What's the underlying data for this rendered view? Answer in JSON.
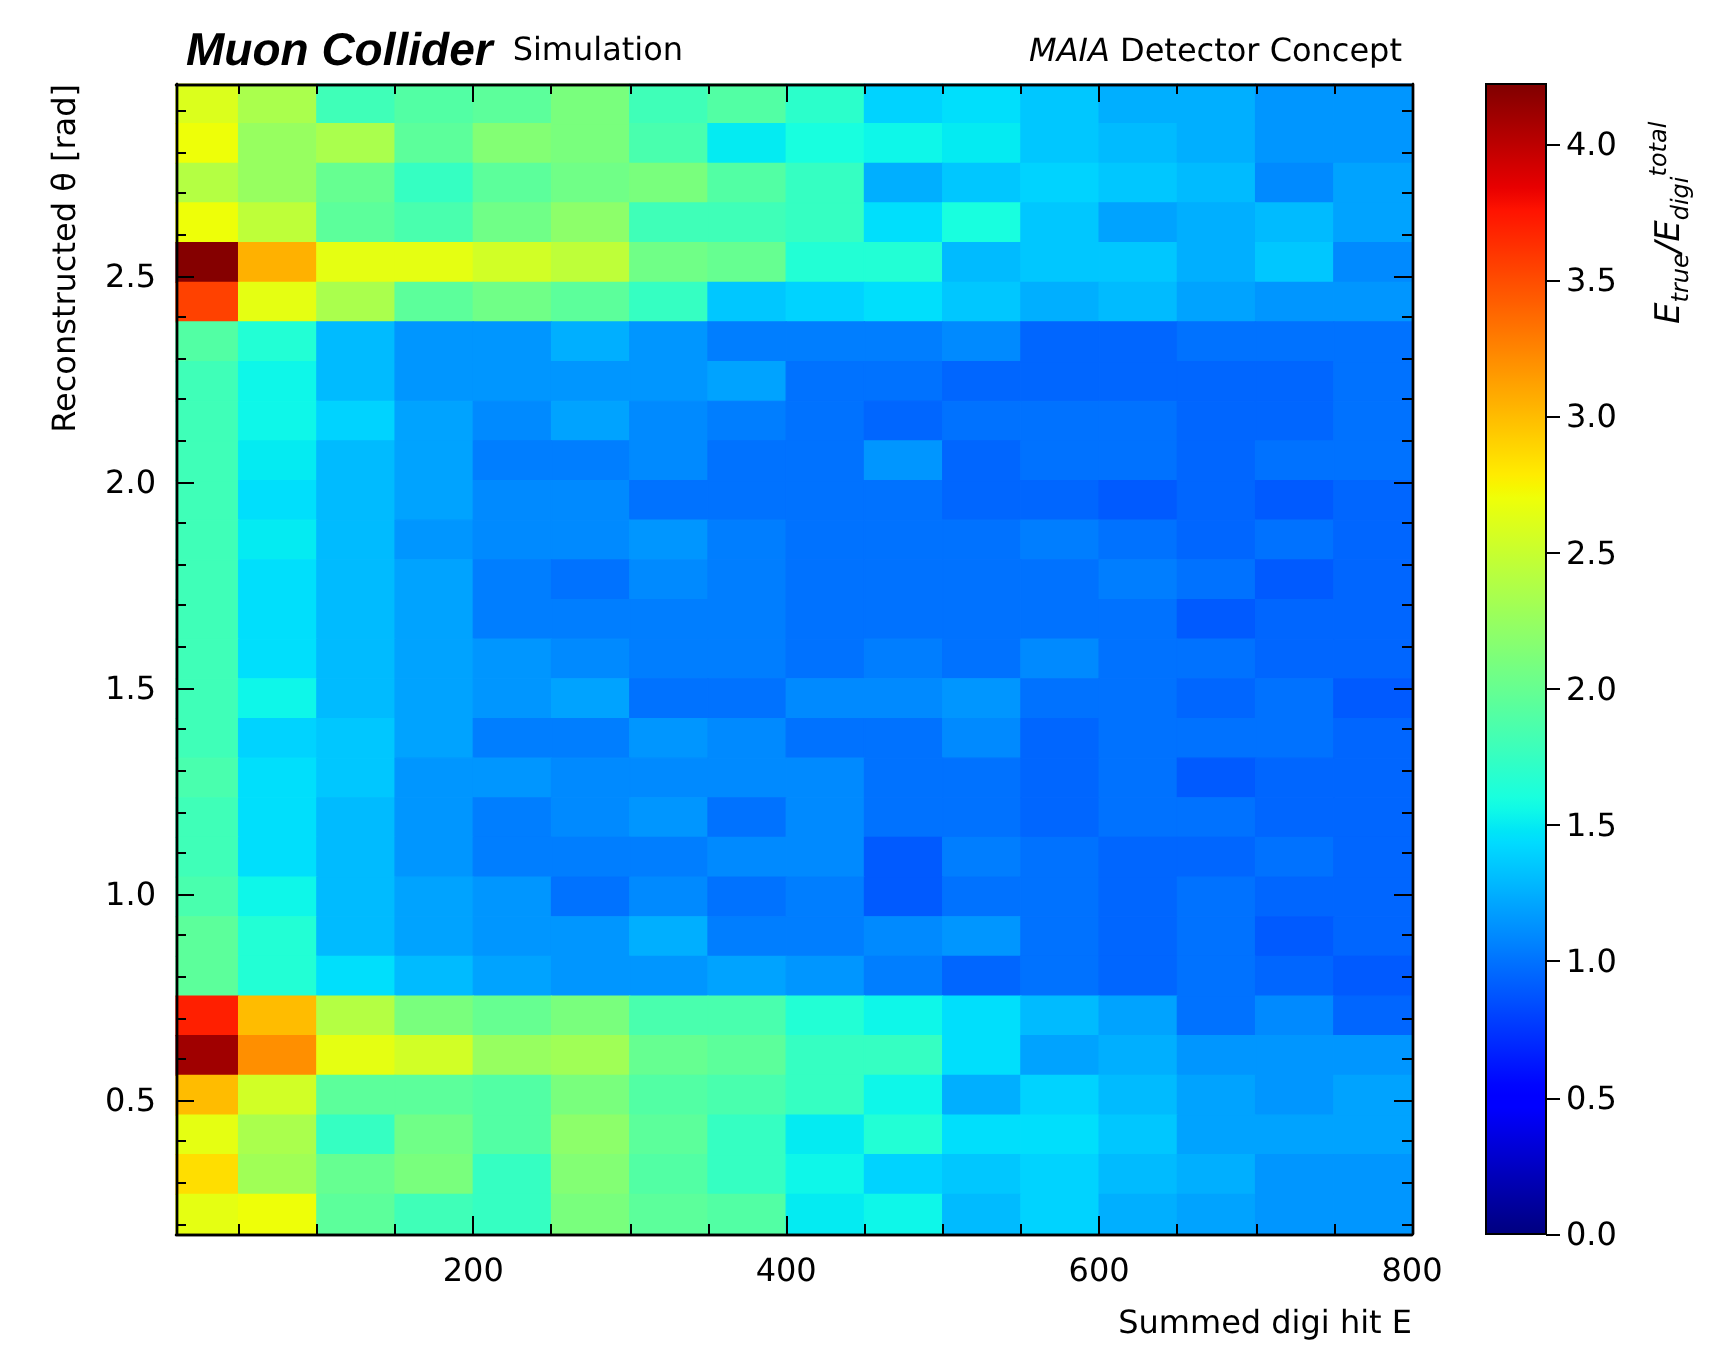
{
  "chart_data": {
    "type": "heatmap",
    "title": "Muon Collider",
    "subtitle": "Simulation",
    "annotations": [
      "MAIA Detector Concept"
    ],
    "xlabel": "Summed digi hit E",
    "ylabel": "Reconstructed θ [rad]",
    "clabel": "E$_{true}$/E$_{digi}$$^{total}$",
    "x": [
      30,
      75,
      125,
      175,
      225,
      275,
      325,
      375,
      425,
      475,
      525,
      575,
      625,
      675,
      725,
      775
    ],
    "xlim": [
      10,
      800
    ],
    "ylim": [
      0.175,
      2.965
    ],
    "xticks": [
      {
        "value": 50,
        "label": null
      },
      {
        "value": 100,
        "label": null
      },
      {
        "value": 150,
        "label": null
      },
      200,
      {
        "value": 250,
        "label": null
      },
      {
        "value": 300,
        "label": null
      },
      {
        "value": 350,
        "label": null
      },
      400,
      {
        "value": 450,
        "label": null
      },
      {
        "value": 500,
        "label": null
      },
      {
        "value": 550,
        "label": null
      },
      600,
      {
        "value": 650,
        "label": null
      },
      {
        "value": 700,
        "label": null
      },
      {
        "value": 750,
        "label": null
      },
      800
    ],
    "yticks": [
      {
        "value": 0.2,
        "label": null
      },
      {
        "value": 0.3,
        "label": null
      },
      {
        "value": 0.4,
        "label": null
      },
      {
        "value": 0.5,
        "label": "0.5"
      },
      {
        "value": 0.6,
        "label": null
      },
      {
        "value": 0.7,
        "label": null
      },
      {
        "value": 0.8,
        "label": null
      },
      {
        "value": 0.9,
        "label": null
      },
      {
        "value": 1.0,
        "label": "1.0"
      },
      {
        "value": 1.1,
        "label": null
      },
      {
        "value": 1.2,
        "label": null
      },
      {
        "value": 1.3,
        "label": null
      },
      {
        "value": 1.4,
        "label": null
      },
      {
        "value": 1.5,
        "label": "1.5"
      },
      {
        "value": 1.6,
        "label": null
      },
      {
        "value": 1.7,
        "label": null
      },
      {
        "value": 1.8,
        "label": null
      },
      {
        "value": 1.9,
        "label": null
      },
      {
        "value": 2.0,
        "label": "2.0"
      },
      {
        "value": 2.1,
        "label": null
      },
      {
        "value": 2.2,
        "label": null
      },
      {
        "value": 2.3,
        "label": null
      },
      {
        "value": 2.4,
        "label": null
      },
      {
        "value": 2.5,
        "label": "2.5"
      },
      {
        "value": 2.6,
        "label": null
      },
      {
        "value": 2.7,
        "label": null
      },
      {
        "value": 2.8,
        "label": null
      },
      {
        "value": 2.9,
        "label": null
      }
    ],
    "clim": [
      0,
      4.22
    ],
    "cticks": [
      {
        "value": 0,
        "label": "0.0"
      },
      {
        "value": 0.5,
        "label": "0.5"
      },
      {
        "value": 1,
        "label": "1.0"
      },
      {
        "value": 1.5,
        "label": "1.5"
      },
      {
        "value": 2,
        "label": "2.0"
      },
      {
        "value": 2.5,
        "label": "2.5"
      },
      {
        "value": 3,
        "label": "3.0"
      },
      {
        "value": 3.5,
        "label": "3.5"
      },
      {
        "value": 4,
        "label": "4.0"
      }
    ],
    "cells": [
      [
        2.6,
        2.35,
        1.8,
        1.9,
        1.95,
        2.1,
        1.8,
        1.9,
        1.7,
        1.4,
        1.45,
        1.35,
        1.25,
        1.25,
        1.15,
        1.15
      ],
      [
        2.7,
        2.25,
        2.35,
        1.95,
        2.15,
        2.1,
        1.85,
        1.5,
        1.6,
        1.55,
        1.5,
        1.35,
        1.3,
        1.25,
        1.15,
        1.15
      ],
      [
        2.4,
        2.25,
        2.0,
        1.75,
        1.95,
        2.05,
        2.1,
        1.9,
        1.75,
        1.25,
        1.35,
        1.4,
        1.35,
        1.3,
        1.1,
        1.2
      ],
      [
        2.7,
        2.45,
        1.95,
        1.85,
        2.05,
        2.2,
        1.8,
        1.8,
        1.75,
        1.45,
        1.6,
        1.35,
        1.2,
        1.25,
        1.3,
        1.2
      ],
      [
        4.2,
        3.05,
        2.65,
        2.65,
        2.55,
        2.45,
        2.05,
        2.0,
        1.65,
        1.65,
        1.3,
        1.35,
        1.35,
        1.25,
        1.35,
        1.1
      ],
      [
        3.55,
        2.65,
        2.35,
        1.95,
        2.05,
        1.95,
        1.75,
        1.35,
        1.4,
        1.45,
        1.35,
        1.25,
        1.3,
        1.2,
        1.15,
        1.15
      ],
      [
        1.9,
        1.65,
        1.3,
        1.15,
        1.15,
        1.25,
        1.15,
        1.05,
        1.05,
        1.05,
        1.1,
        0.95,
        0.95,
        1.0,
        1.0,
        1.0
      ],
      [
        1.8,
        1.55,
        1.3,
        1.15,
        1.15,
        1.15,
        1.15,
        1.2,
        1.0,
        1.0,
        0.95,
        0.95,
        0.95,
        0.95,
        0.95,
        1.0
      ],
      [
        1.8,
        1.55,
        1.4,
        1.2,
        1.1,
        1.2,
        1.1,
        1.05,
        1.0,
        0.95,
        1.0,
        1.0,
        1.0,
        0.95,
        0.95,
        1.0
      ],
      [
        1.8,
        1.5,
        1.3,
        1.2,
        1.05,
        1.05,
        1.1,
        1.0,
        1.0,
        1.15,
        0.95,
        1.0,
        1.0,
        0.95,
        1.0,
        1.0
      ],
      [
        1.8,
        1.45,
        1.3,
        1.2,
        1.1,
        1.1,
        1.0,
        1.0,
        1.0,
        1.0,
        0.95,
        0.95,
        0.9,
        0.95,
        0.9,
        0.95
      ],
      [
        1.8,
        1.5,
        1.3,
        1.15,
        1.1,
        1.1,
        1.15,
        1.05,
        1.0,
        1.0,
        1.0,
        1.05,
        1.0,
        0.95,
        1.0,
        0.95
      ],
      [
        1.8,
        1.45,
        1.3,
        1.2,
        1.05,
        1.0,
        1.1,
        1.05,
        1.0,
        1.0,
        1.0,
        1.0,
        1.05,
        1.0,
        0.9,
        0.95
      ],
      [
        1.8,
        1.45,
        1.3,
        1.2,
        1.05,
        1.05,
        1.05,
        1.05,
        1.0,
        1.0,
        1.0,
        1.0,
        1.0,
        0.9,
        0.95,
        0.95
      ],
      [
        1.8,
        1.45,
        1.3,
        1.2,
        1.15,
        1.1,
        1.05,
        1.05,
        1.0,
        1.05,
        1.0,
        1.1,
        1.0,
        1.0,
        0.95,
        0.95
      ],
      [
        1.8,
        1.55,
        1.3,
        1.2,
        1.15,
        1.2,
        1.0,
        1.0,
        1.1,
        1.1,
        1.15,
        1.0,
        1.0,
        0.95,
        1.0,
        0.9
      ],
      [
        1.8,
        1.4,
        1.35,
        1.2,
        1.05,
        1.05,
        1.15,
        1.1,
        1.0,
        1.0,
        1.1,
        0.95,
        1.0,
        1.0,
        1.0,
        0.95
      ],
      [
        1.85,
        1.45,
        1.35,
        1.15,
        1.15,
        1.1,
        1.1,
        1.1,
        1.1,
        1.0,
        1.0,
        0.95,
        1.0,
        0.9,
        0.95,
        0.95
      ],
      [
        1.8,
        1.45,
        1.3,
        1.15,
        1.05,
        1.1,
        1.15,
        1.0,
        1.1,
        1.0,
        1.0,
        0.95,
        1.0,
        1.0,
        0.95,
        0.95
      ],
      [
        1.8,
        1.45,
        1.3,
        1.15,
        1.05,
        1.05,
        1.05,
        1.1,
        1.1,
        0.9,
        1.05,
        1.0,
        0.95,
        0.95,
        1.0,
        0.95
      ],
      [
        1.85,
        1.55,
        1.3,
        1.2,
        1.15,
        1.0,
        1.1,
        1.0,
        1.05,
        0.9,
        1.0,
        1.0,
        0.95,
        1.0,
        0.95,
        0.95
      ],
      [
        1.95,
        1.65,
        1.3,
        1.2,
        1.15,
        1.15,
        1.25,
        1.05,
        1.05,
        1.1,
        1.15,
        1.0,
        0.95,
        1.0,
        0.9,
        0.95
      ],
      [
        1.95,
        1.65,
        1.45,
        1.3,
        1.2,
        1.15,
        1.15,
        1.2,
        1.15,
        1.05,
        0.95,
        1.0,
        0.95,
        1.0,
        0.95,
        0.9
      ],
      [
        3.7,
        3.0,
        2.4,
        2.1,
        2.0,
        2.1,
        1.85,
        1.85,
        1.65,
        1.55,
        1.45,
        1.3,
        1.2,
        1.0,
        1.1,
        0.95
      ],
      [
        4.1,
        3.2,
        2.65,
        2.55,
        2.25,
        2.3,
        2.0,
        1.95,
        1.75,
        1.75,
        1.45,
        1.2,
        1.25,
        1.15,
        1.15,
        1.15
      ],
      [
        3.0,
        2.55,
        1.95,
        1.95,
        1.9,
        2.1,
        1.9,
        1.85,
        1.75,
        1.55,
        1.25,
        1.4,
        1.3,
        1.2,
        1.15,
        1.2
      ],
      [
        2.65,
        2.35,
        1.75,
        2.05,
        1.9,
        2.2,
        1.95,
        1.75,
        1.5,
        1.65,
        1.45,
        1.45,
        1.35,
        1.2,
        1.2,
        1.2
      ],
      [
        2.85,
        2.3,
        2.0,
        2.1,
        1.75,
        2.15,
        1.9,
        1.75,
        1.55,
        1.4,
        1.35,
        1.4,
        1.3,
        1.25,
        1.15,
        1.15
      ],
      [
        2.65,
        2.7,
        1.95,
        1.8,
        1.75,
        2.1,
        1.95,
        1.9,
        1.5,
        1.55,
        1.3,
        1.4,
        1.25,
        1.2,
        1.15,
        1.15
      ]
    ]
  }
}
